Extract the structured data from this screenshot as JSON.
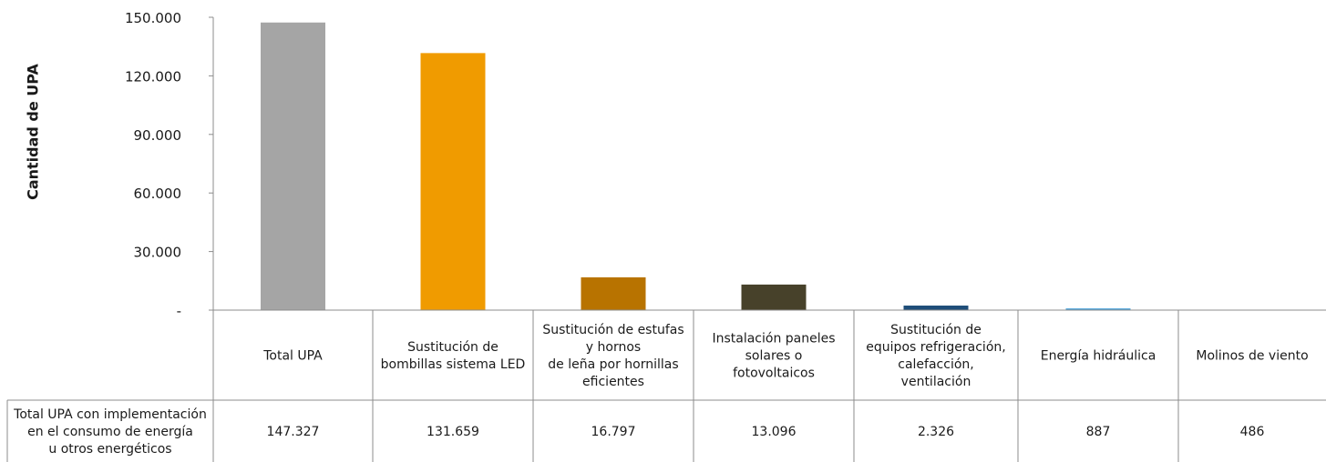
{
  "chart_data": {
    "type": "bar",
    "ylabel": "Cantidad de UPA",
    "ylim": [
      0,
      150000
    ],
    "yticks": [
      0,
      30000,
      60000,
      90000,
      120000,
      150000
    ],
    "ytick_labels": [
      "-",
      "30.000",
      "60.000",
      "90.000",
      "120.000",
      "150.000"
    ],
    "categories": [
      "Total UPA",
      "Sustitución de\nbombillas sistema LED",
      "Sustitución de estufas\ny hornos\nde leña por hornillas\neficientes",
      "Instalación paneles\nsolares o\nfotovoltaicos",
      "Sustitución de\nequipos refrigeración,\ncalefacción,\nventilación",
      "Energía hidráulica",
      "Molinos de viento"
    ],
    "values": [
      147327,
      131659,
      16797,
      13096,
      2326,
      887,
      486
    ],
    "value_labels": [
      "147.327",
      "131.659",
      "16.797",
      "13.096",
      "2.326",
      "887",
      "486"
    ],
    "colors": [
      "#a5a5a5",
      "#f09b00",
      "#b87300",
      "#47412a",
      "#1f4e79",
      "#4fa4d8",
      "#ffffff"
    ],
    "table_row_label": "Total UPA con implementación\nen el consumo de energía\nu otros energéticos",
    "grid": false,
    "legend": "none"
  }
}
